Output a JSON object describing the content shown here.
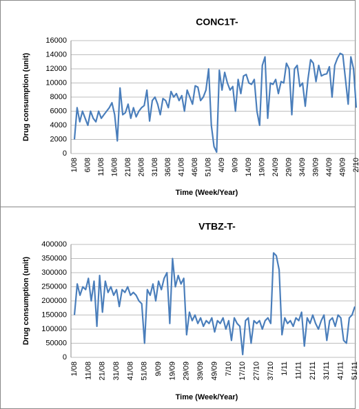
{
  "chart_data": [
    {
      "type": "line",
      "title": "CONC1T-",
      "x_label": "Time (Week/Year)",
      "y_label": "Drug consumption (unit)",
      "categories": [
        "1/08",
        null,
        null,
        null,
        null,
        "6/08",
        null,
        null,
        null,
        null,
        "11/08",
        null,
        null,
        null,
        null,
        "16/08",
        null,
        null,
        null,
        null,
        "21/08",
        null,
        null,
        null,
        null,
        "26/08",
        null,
        null,
        null,
        null,
        "31/08",
        null,
        null,
        null,
        null,
        "36/08",
        null,
        null,
        null,
        null,
        "41/08",
        null,
        null,
        null,
        null,
        "46/08",
        null,
        null,
        null,
        null,
        "51/08",
        null,
        null,
        null,
        null,
        "4/09",
        null,
        null,
        null,
        null,
        "9/09",
        null,
        null,
        null,
        null,
        "14/09",
        null,
        null,
        null,
        null,
        "19/09",
        null,
        null,
        null,
        null,
        "24/09",
        null,
        null,
        null,
        null,
        "29/09",
        null,
        null,
        null,
        null,
        "34/09",
        null,
        null,
        null,
        null,
        "39/09",
        null,
        null,
        null,
        null,
        "44/09",
        null,
        null,
        null,
        null,
        "49/09",
        null,
        null,
        null,
        null,
        "2/10"
      ],
      "series": [
        {
          "name": "CONC1T-",
          "color": "#4a7ebb",
          "values": [
            2000,
            6500,
            4500,
            6000,
            5000,
            4000,
            6000,
            5000,
            4500,
            6000,
            5000,
            5500,
            6000,
            6500,
            7200,
            5500,
            1800,
            9300,
            5500,
            5800,
            7000,
            5000,
            6500,
            5200,
            6000,
            6500,
            6800,
            9000,
            4600,
            7500,
            8000,
            7000,
            5500,
            7800,
            7500,
            6500,
            8800,
            8000,
            8500,
            7500,
            8200,
            6000,
            9000,
            8000,
            7000,
            9600,
            9400,
            7500,
            8000,
            9000,
            12000,
            4000,
            1000,
            200,
            11800,
            9000,
            11500,
            10000,
            9000,
            9500,
            6000,
            10500,
            8500,
            11000,
            11200,
            10000,
            9800,
            10500,
            6000,
            4000,
            12500,
            13700,
            5000,
            10000,
            9800,
            10500,
            8500,
            10200,
            10000,
            12800,
            12000,
            5500,
            12000,
            12500,
            9500,
            10000,
            6700,
            10500,
            13300,
            12800,
            10200,
            12500,
            11000,
            11200,
            11300,
            12300,
            8000,
            12500,
            13500,
            14200,
            14000,
            10500,
            7000,
            13700,
            12000,
            6500
          ]
        }
      ],
      "ylim": [
        0,
        16000
      ],
      "yticks": [
        0,
        2000,
        4000,
        6000,
        8000,
        10000,
        12000,
        14000,
        16000
      ],
      "grid": true
    },
    {
      "type": "line",
      "title": "VTBZ-T-",
      "x_label": "Time (Week/Year)",
      "y_label": "Drug consumption (unit)",
      "categories": [
        "1/08",
        null,
        null,
        null,
        null,
        "11/08",
        null,
        null,
        null,
        null,
        "21/08",
        null,
        null,
        null,
        null,
        "31/08",
        null,
        null,
        null,
        null,
        "41/08",
        null,
        null,
        null,
        null,
        "51/08",
        null,
        null,
        null,
        null,
        "9/09",
        null,
        null,
        null,
        null,
        "19/09",
        null,
        null,
        null,
        null,
        "29/09",
        null,
        null,
        null,
        null,
        "39/09",
        null,
        null,
        null,
        null,
        "49/09",
        null,
        null,
        null,
        null,
        "7/10",
        null,
        null,
        null,
        null,
        "17/10",
        null,
        null,
        null,
        null,
        "27/10",
        null,
        null,
        null,
        null,
        "37/10",
        null,
        null,
        null,
        null,
        "1/11",
        null,
        null,
        null,
        null,
        "11/11",
        null,
        null,
        null,
        null,
        "21/11",
        null,
        null,
        null,
        null,
        "31/11",
        null,
        null,
        null,
        null,
        "41/11",
        null,
        null,
        null,
        null,
        "51/11"
      ],
      "series": [
        {
          "name": "VTBZ-T-",
          "color": "#4a7ebb",
          "values": [
            150000,
            260000,
            220000,
            250000,
            240000,
            280000,
            200000,
            270000,
            110000,
            290000,
            160000,
            270000,
            230000,
            250000,
            220000,
            240000,
            180000,
            240000,
            230000,
            250000,
            220000,
            230000,
            220000,
            200000,
            190000,
            50000,
            240000,
            220000,
            260000,
            200000,
            270000,
            240000,
            280000,
            300000,
            120000,
            350000,
            250000,
            290000,
            260000,
            280000,
            80000,
            160000,
            130000,
            150000,
            120000,
            140000,
            110000,
            130000,
            120000,
            140000,
            90000,
            130000,
            120000,
            140000,
            100000,
            130000,
            60000,
            140000,
            120000,
            110000,
            10000,
            130000,
            140000,
            50000,
            130000,
            120000,
            130000,
            100000,
            130000,
            140000,
            120000,
            370000,
            360000,
            310000,
            80000,
            140000,
            120000,
            130000,
            110000,
            140000,
            130000,
            160000,
            40000,
            140000,
            120000,
            150000,
            120000,
            100000,
            130000,
            150000,
            60000,
            130000,
            140000,
            110000,
            150000,
            140000,
            60000,
            50000,
            140000,
            150000,
            180000
          ]
        }
      ],
      "ylim": [
        0,
        400000
      ],
      "yticks": [
        0,
        50000,
        100000,
        150000,
        200000,
        250000,
        300000,
        350000,
        400000
      ],
      "grid": true
    }
  ]
}
